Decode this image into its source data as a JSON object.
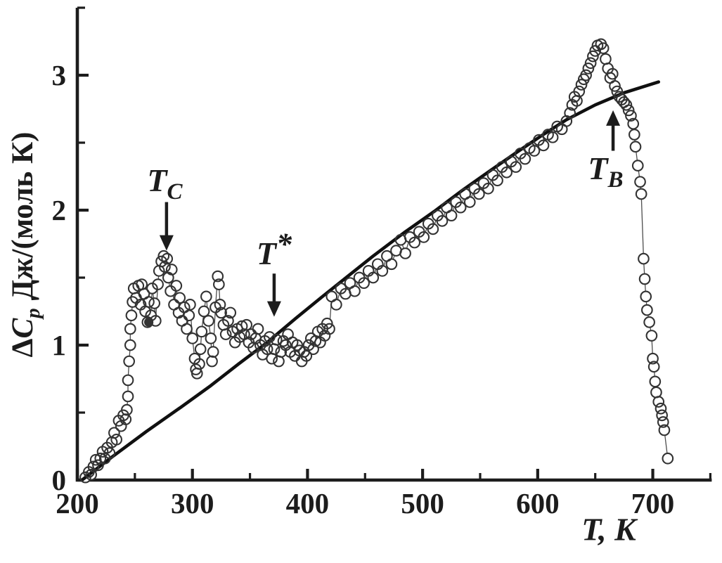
{
  "colors": {
    "ink": "#1c1c1c",
    "marker": "#333333",
    "fit_line": "#101010",
    "connector": "#3a3a3a",
    "background": "#ffffff"
  },
  "chart_data": {
    "type": "scatter",
    "title": "",
    "xlabel": "T, K",
    "ylabel": "ΔCp Дж/(моль К)",
    "ylabel_parts": {
      "prefix": "Δ",
      "symbol": "C",
      "subscript": "p",
      "units": "Дж/(моль К)"
    },
    "xlim": [
      200,
      750
    ],
    "ylim": [
      0,
      3.5
    ],
    "x_major_ticks": [
      200,
      300,
      400,
      500,
      600,
      700
    ],
    "x_minor_ticks": [
      250,
      350,
      450,
      550,
      650,
      750
    ],
    "y_major_ticks": [
      0,
      1,
      2,
      3
    ],
    "y_minor_ticks": [
      0.5,
      1.5,
      2.5,
      3.5
    ],
    "grid": false,
    "legend": "none",
    "series": [
      {
        "name": "experimental-heat-capacity-points",
        "type": "open-circle-scatter",
        "points": [
          [
            207,
            0.02
          ],
          [
            210,
            0.06
          ],
          [
            212,
            0.04
          ],
          [
            214,
            0.1
          ],
          [
            216,
            0.15
          ],
          [
            218,
            0.11
          ],
          [
            220,
            0.16
          ],
          [
            222,
            0.21
          ],
          [
            224,
            0.16
          ],
          [
            226,
            0.24
          ],
          [
            228,
            0.2
          ],
          [
            230,
            0.28
          ],
          [
            232,
            0.35
          ],
          [
            234,
            0.3
          ],
          [
            236,
            0.44
          ],
          [
            238,
            0.4
          ],
          [
            240,
            0.48
          ],
          [
            242,
            0.45
          ],
          [
            243,
            0.52
          ],
          [
            244,
            0.62
          ],
          [
            244,
            0.74
          ],
          [
            245,
            0.88
          ],
          [
            246,
            1.0
          ],
          [
            246,
            1.12
          ],
          [
            247,
            1.22
          ],
          [
            248,
            1.32
          ],
          [
            249,
            1.42
          ],
          [
            251,
            1.35
          ],
          [
            253,
            1.44
          ],
          [
            255,
            1.3
          ],
          [
            256,
            1.45
          ],
          [
            258,
            1.38
          ],
          [
            259,
            1.25
          ],
          [
            261,
            1.17
          ],
          [
            262,
            1.32
          ],
          [
            264,
            1.22
          ],
          [
            265,
            1.42
          ],
          [
            267,
            1.31
          ],
          [
            268,
            1.18
          ],
          [
            270,
            1.45
          ],
          [
            271,
            1.55
          ],
          [
            273,
            1.62
          ],
          [
            275,
            1.66
          ],
          [
            276,
            1.58
          ],
          [
            278,
            1.64
          ],
          [
            279,
            1.5
          ],
          [
            281,
            1.4
          ],
          [
            282,
            1.56
          ],
          [
            284,
            1.3
          ],
          [
            286,
            1.44
          ],
          [
            288,
            1.24
          ],
          [
            289,
            1.35
          ],
          [
            291,
            1.18
          ],
          [
            293,
            1.28
          ],
          [
            295,
            1.12
          ],
          [
            297,
            1.22
          ],
          [
            298,
            1.3
          ],
          [
            300,
            1.05
          ],
          [
            302,
            0.9
          ],
          [
            303,
            0.82
          ],
          [
            304,
            0.79
          ],
          [
            306,
            0.86
          ],
          [
            307,
            0.97
          ],
          [
            308,
            1.1
          ],
          [
            310,
            1.25
          ],
          [
            312,
            1.36
          ],
          [
            314,
            1.18
          ],
          [
            316,
            1.05
          ],
          [
            317,
            0.88
          ],
          [
            318,
            0.95
          ],
          [
            320,
            1.28
          ],
          [
            322,
            1.51
          ],
          [
            323,
            1.45
          ],
          [
            324,
            1.3
          ],
          [
            325,
            1.24
          ],
          [
            327,
            1.15
          ],
          [
            329,
            1.08
          ],
          [
            331,
            1.18
          ],
          [
            333,
            1.24
          ],
          [
            335,
            1.1
          ],
          [
            337,
            1.02
          ],
          [
            339,
            1.12
          ],
          [
            341,
            1.06
          ],
          [
            343,
            1.14
          ],
          [
            345,
            1.08
          ],
          [
            347,
            1.15
          ],
          [
            349,
            1.02
          ],
          [
            351,
            1.08
          ],
          [
            353,
            0.98
          ],
          [
            355,
            1.05
          ],
          [
            357,
            1.12
          ],
          [
            359,
            1.0
          ],
          [
            361,
            0.93
          ],
          [
            363,
            1.03
          ],
          [
            365,
            0.97
          ],
          [
            367,
            1.06
          ],
          [
            369,
            0.9
          ],
          [
            371,
            0.97
          ],
          [
            373,
            1.04
          ],
          [
            375,
            0.88
          ],
          [
            377,
            0.95
          ],
          [
            379,
            1.03
          ],
          [
            381,
            1.0
          ],
          [
            383,
            1.08
          ],
          [
            385,
            0.95
          ],
          [
            387,
            1.02
          ],
          [
            389,
            0.92
          ],
          [
            391,
            1.0
          ],
          [
            393,
            0.96
          ],
          [
            395,
            0.88
          ],
          [
            397,
            0.95
          ],
          [
            399,
            0.92
          ],
          [
            401,
            1.0
          ],
          [
            403,
            1.05
          ],
          [
            405,
            0.97
          ],
          [
            407,
            1.03
          ],
          [
            409,
            1.1
          ],
          [
            411,
            1.02
          ],
          [
            413,
            1.12
          ],
          [
            415,
            1.07
          ],
          [
            417,
            1.16
          ],
          [
            419,
            1.12
          ],
          [
            421,
            1.36
          ],
          [
            425,
            1.3
          ],
          [
            429,
            1.42
          ],
          [
            433,
            1.38
          ],
          [
            437,
            1.46
          ],
          [
            441,
            1.4
          ],
          [
            445,
            1.5
          ],
          [
            449,
            1.46
          ],
          [
            453,
            1.55
          ],
          [
            457,
            1.5
          ],
          [
            461,
            1.6
          ],
          [
            465,
            1.55
          ],
          [
            469,
            1.66
          ],
          [
            473,
            1.6
          ],
          [
            477,
            1.7
          ],
          [
            481,
            1.78
          ],
          [
            485,
            1.68
          ],
          [
            489,
            1.8
          ],
          [
            493,
            1.76
          ],
          [
            497,
            1.84
          ],
          [
            501,
            1.8
          ],
          [
            505,
            1.9
          ],
          [
            509,
            1.86
          ],
          [
            513,
            1.96
          ],
          [
            517,
            1.92
          ],
          [
            521,
            2.02
          ],
          [
            525,
            1.96
          ],
          [
            529,
            2.06
          ],
          [
            533,
            2.02
          ],
          [
            537,
            2.12
          ],
          [
            541,
            2.06
          ],
          [
            545,
            2.16
          ],
          [
            549,
            2.12
          ],
          [
            553,
            2.2
          ],
          [
            557,
            2.16
          ],
          [
            561,
            2.26
          ],
          [
            565,
            2.22
          ],
          [
            569,
            2.32
          ],
          [
            573,
            2.28
          ],
          [
            577,
            2.36
          ],
          [
            581,
            2.32
          ],
          [
            585,
            2.42
          ],
          [
            589,
            2.38
          ],
          [
            593,
            2.46
          ],
          [
            597,
            2.44
          ],
          [
            601,
            2.52
          ],
          [
            605,
            2.48
          ],
          [
            609,
            2.56
          ],
          [
            613,
            2.54
          ],
          [
            617,
            2.62
          ],
          [
            621,
            2.6
          ],
          [
            625,
            2.66
          ],
          [
            628,
            2.72
          ],
          [
            630,
            2.78
          ],
          [
            632,
            2.84
          ],
          [
            634,
            2.81
          ],
          [
            636,
            2.88
          ],
          [
            638,
            2.93
          ],
          [
            640,
            2.97
          ],
          [
            642,
            3.0
          ],
          [
            644,
            3.05
          ],
          [
            646,
            3.09
          ],
          [
            648,
            3.14
          ],
          [
            650,
            3.18
          ],
          [
            652,
            3.22
          ],
          [
            655,
            3.23
          ],
          [
            657,
            3.2
          ],
          [
            659,
            3.12
          ],
          [
            661,
            3.05
          ],
          [
            663,
            2.98
          ],
          [
            665,
            3.01
          ],
          [
            667,
            2.92
          ],
          [
            669,
            2.88
          ],
          [
            671,
            2.84
          ],
          [
            673,
            2.82
          ],
          [
            675,
            2.8
          ],
          [
            677,
            2.78
          ],
          [
            679,
            2.74
          ],
          [
            681,
            2.7
          ],
          [
            683,
            2.64
          ],
          [
            684,
            2.56
          ],
          [
            685,
            2.47
          ],
          [
            687,
            2.33
          ],
          [
            689,
            2.21
          ],
          [
            690,
            2.12
          ],
          [
            692,
            1.64
          ],
          [
            693,
            1.49
          ],
          [
            694,
            1.36
          ],
          [
            695,
            1.26
          ],
          [
            697,
            1.17
          ],
          [
            699,
            1.07
          ],
          [
            700,
            0.9
          ],
          [
            701,
            0.84
          ],
          [
            702,
            0.73
          ],
          [
            703,
            0.65
          ],
          [
            705,
            0.58
          ],
          [
            707,
            0.53
          ],
          [
            708,
            0.48
          ],
          [
            709,
            0.43
          ],
          [
            710,
            0.37
          ],
          [
            713,
            0.16
          ]
        ],
        "filled_point": [
          262,
          1.17
        ]
      },
      {
        "name": "baseline-fit-line",
        "type": "line",
        "points": [
          [
            204,
            0.0
          ],
          [
            230,
            0.17
          ],
          [
            260,
            0.36
          ],
          [
            290,
            0.54
          ],
          [
            316,
            0.7
          ],
          [
            340,
            0.86
          ],
          [
            365,
            1.02
          ],
          [
            390,
            1.2
          ],
          [
            413,
            1.36
          ],
          [
            435,
            1.51
          ],
          [
            457,
            1.66
          ],
          [
            485,
            1.84
          ],
          [
            510,
            1.99
          ],
          [
            535,
            2.15
          ],
          [
            560,
            2.3
          ],
          [
            582,
            2.43
          ],
          [
            603,
            2.55
          ],
          [
            625,
            2.67
          ],
          [
            650,
            2.78
          ],
          [
            675,
            2.87
          ],
          [
            705,
            2.95
          ]
        ]
      }
    ],
    "annotations": [
      {
        "id": "Tc",
        "base": "T",
        "sub": "C",
        "sup": "",
        "label_x": 276,
        "label_y": 2.14,
        "arrow_dir": "down",
        "arrow_x": 277.5,
        "arrow_from": 2.06,
        "arrow_to": 1.7
      },
      {
        "id": "Tstar",
        "base": "T",
        "sub": "",
        "sup": "*",
        "label_x": 371,
        "label_y": 1.6,
        "arrow_dir": "down",
        "arrow_x": 371,
        "arrow_from": 1.53,
        "arrow_to": 1.21
      },
      {
        "id": "Tb",
        "base": "T",
        "sub": "B",
        "sup": "",
        "label_x": 659,
        "label_y": 2.23,
        "arrow_dir": "up",
        "arrow_x": 665.5,
        "arrow_from": 2.44,
        "arrow_to": 2.74
      }
    ]
  }
}
